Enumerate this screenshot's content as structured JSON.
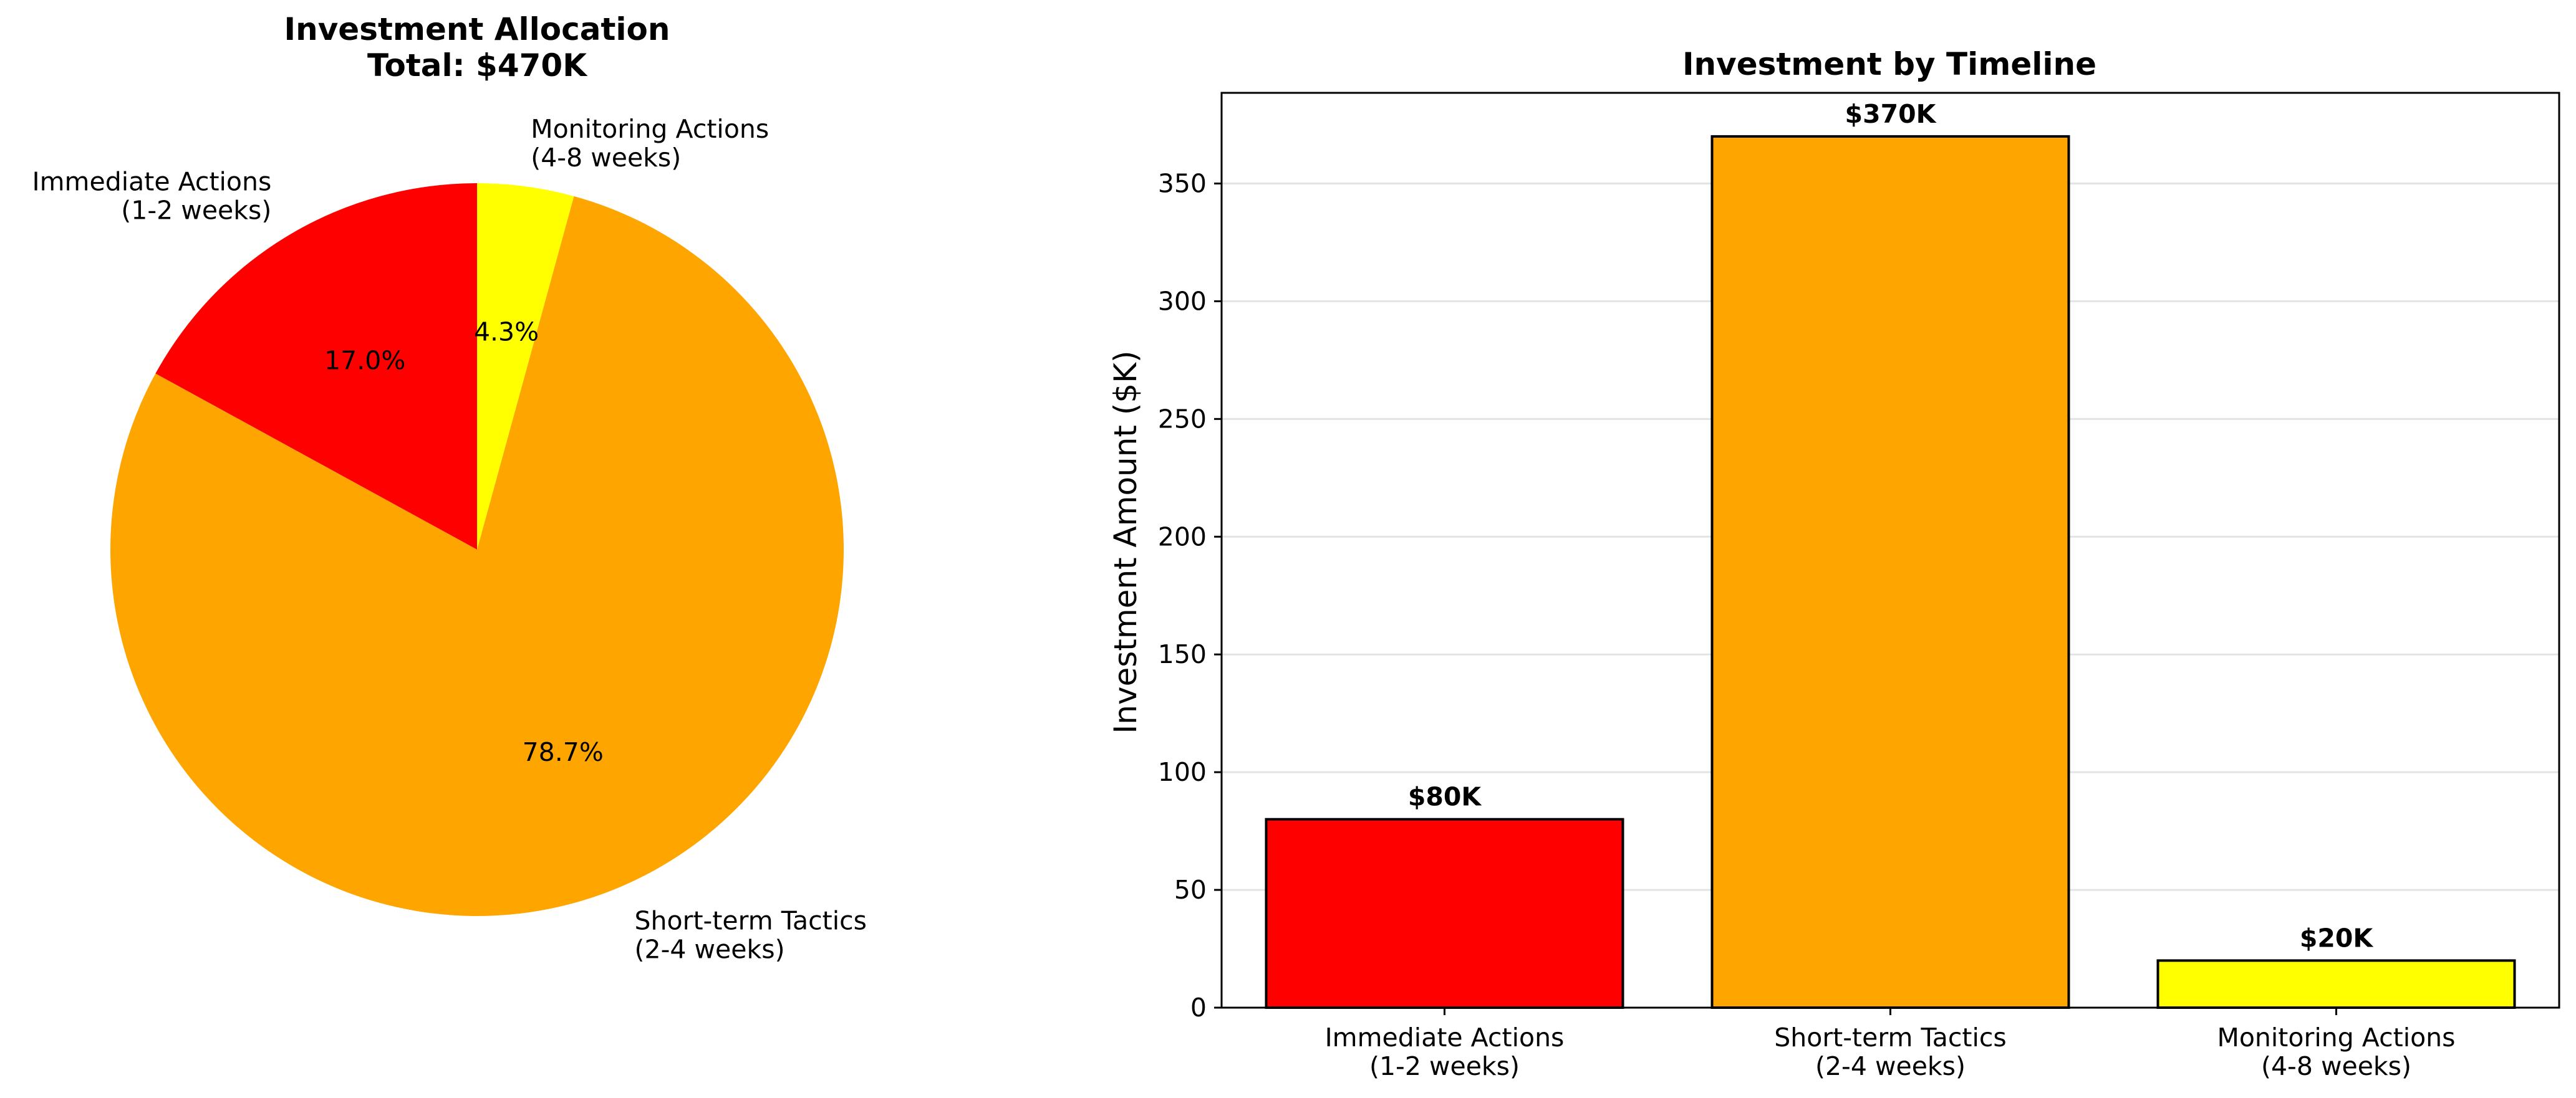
{
  "chart_data": [
    {
      "type": "pie",
      "title": "Investment Allocation",
      "subtitle": "Total: $470K",
      "slices": [
        {
          "label": "Immediate Actions",
          "sublabel": "(1-2 weeks)",
          "value": 80,
          "percent_label": "17.0%",
          "color": "#ff0000"
        },
        {
          "label": "Short-term Tactics",
          "sublabel": "(2-4 weeks)",
          "value": 370,
          "percent_label": "78.7%",
          "color": "#ffa500"
        },
        {
          "label": "Monitoring Actions",
          "sublabel": "(4-8 weeks)",
          "value": 20,
          "percent_label": "4.3%",
          "color": "#ffff00"
        }
      ],
      "start_angle_deg": 90,
      "direction": "counterclockwise"
    },
    {
      "type": "bar",
      "title": "Investment by Timeline",
      "categories": [
        {
          "label": "Immediate Actions",
          "sublabel": "(1-2 weeks)"
        },
        {
          "label": "Short-term Tactics",
          "sublabel": "(2-4 weeks)"
        },
        {
          "label": "Monitoring Actions",
          "sublabel": "(4-8 weeks)"
        }
      ],
      "values": [
        80,
        370,
        20
      ],
      "data_labels": [
        "$80K",
        "$370K",
        "$20K"
      ],
      "colors": [
        "#ff0000",
        "#ffa500",
        "#ffff00"
      ],
      "ylabel": "Investment Amount ($K)",
      "xlabel": "",
      "ylim": [
        0,
        388.5
      ],
      "yticks": [
        0,
        50,
        100,
        150,
        200,
        250,
        300,
        350
      ],
      "grid": "y"
    }
  ]
}
